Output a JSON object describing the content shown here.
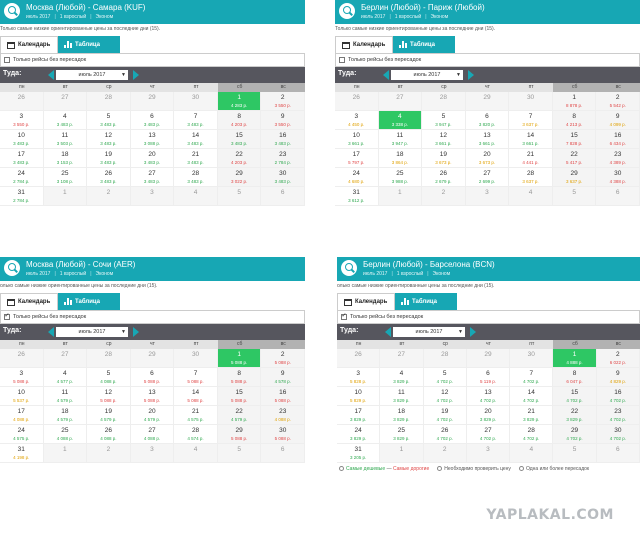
{
  "weekdays": [
    "пн",
    "вт",
    "ср",
    "чт",
    "пт",
    "сб",
    "вс"
  ],
  "common": {
    "tab_calendar": "Календарь",
    "tab_table": "Таблица",
    "direct_only": "Только рейсы без пересадок",
    "there_label": "Туда:",
    "month": "июль 2017",
    "month_arrow": "▼",
    "meta_month": "июль 2017",
    "meta_pax": "1 взрослый",
    "meta_class": "Эконом",
    "note": "Только самые низкие ориентированные цены за последние дни (15)."
  },
  "widgets": [
    {
      "route": "Москва (Любой) - Самара (KUF)",
      "note": "Только самые низкие ориентированные цены за последние дни (15).",
      "direct_checked": false,
      "days": [
        {
          "d": "26",
          "o": true
        },
        {
          "d": "27",
          "o": true
        },
        {
          "d": "28",
          "o": true
        },
        {
          "d": "29",
          "o": true
        },
        {
          "d": "30",
          "o": true
        },
        {
          "d": "1",
          "p": "4 283 р.",
          "sel": true
        },
        {
          "d": "2",
          "p": "3 550 р.",
          "c": "r"
        },
        {
          "d": "3",
          "p": "3 550 р.",
          "c": "r"
        },
        {
          "d": "4",
          "p": "3 483 р.",
          "c": "g"
        },
        {
          "d": "5",
          "p": "3 483 р.",
          "c": "g"
        },
        {
          "d": "6",
          "p": "3 483 р.",
          "c": "g"
        },
        {
          "d": "7",
          "p": "3 483 р.",
          "c": "g"
        },
        {
          "d": "8",
          "p": "4 203 р.",
          "c": "r"
        },
        {
          "d": "9",
          "p": "3 550 р.",
          "c": "r"
        },
        {
          "d": "10",
          "p": "3 483 р.",
          "c": "g"
        },
        {
          "d": "11",
          "p": "3 503 р.",
          "c": "g"
        },
        {
          "d": "12",
          "p": "3 483 р.",
          "c": "g"
        },
        {
          "d": "13",
          "p": "3 088 р.",
          "c": "g"
        },
        {
          "d": "14",
          "p": "3 483 р.",
          "c": "g"
        },
        {
          "d": "15",
          "p": "3 483 р.",
          "c": "g"
        },
        {
          "d": "16",
          "p": "3 483 р.",
          "c": "g"
        },
        {
          "d": "17",
          "p": "3 483 р.",
          "c": "g"
        },
        {
          "d": "18",
          "p": "3 153 р.",
          "c": "g"
        },
        {
          "d": "19",
          "p": "3 483 р.",
          "c": "g"
        },
        {
          "d": "20",
          "p": "3 483 р.",
          "c": "g"
        },
        {
          "d": "21",
          "p": "3 483 р.",
          "c": "g"
        },
        {
          "d": "22",
          "p": "4 203 р.",
          "c": "r"
        },
        {
          "d": "23",
          "p": "2 784 р.",
          "c": "g"
        },
        {
          "d": "24",
          "p": "2 784 р.",
          "c": "g"
        },
        {
          "d": "25",
          "p": "3 108 р.",
          "c": "g"
        },
        {
          "d": "26",
          "p": "3 483 р.",
          "c": "g"
        },
        {
          "d": "27",
          "p": "3 483 р.",
          "c": "g"
        },
        {
          "d": "28",
          "p": "3 483 р.",
          "c": "g"
        },
        {
          "d": "29",
          "p": "3 022 р.",
          "c": "r"
        },
        {
          "d": "30",
          "p": "3 483 р.",
          "c": "g"
        },
        {
          "d": "31",
          "p": "2 784 р.",
          "c": "g"
        },
        {
          "d": "1",
          "o": true
        },
        {
          "d": "2",
          "o": true
        },
        {
          "d": "3",
          "o": true
        },
        {
          "d": "4",
          "o": true
        },
        {
          "d": "5",
          "o": true
        },
        {
          "d": "6",
          "o": true
        }
      ]
    },
    {
      "route": "Берлин (Любой) - Париж (Любой)",
      "note": "Только самые низкие ориентированные цены за последние дни (15).",
      "direct_checked": false,
      "days": [
        {
          "d": "26",
          "o": true
        },
        {
          "d": "27",
          "o": true
        },
        {
          "d": "28",
          "o": true
        },
        {
          "d": "29",
          "o": true
        },
        {
          "d": "30",
          "o": true
        },
        {
          "d": "1",
          "p": "8 878 р.",
          "c": "r"
        },
        {
          "d": "2",
          "p": "5 542 р.",
          "c": "r"
        },
        {
          "d": "3",
          "p": "4 450 р.",
          "c": "o"
        },
        {
          "d": "4",
          "p": "3 338 р.",
          "sel": true
        },
        {
          "d": "5",
          "p": "3 947 р.",
          "c": "g"
        },
        {
          "d": "6",
          "p": "3 820 р.",
          "c": "g"
        },
        {
          "d": "7",
          "p": "3 637 р.",
          "c": "o"
        },
        {
          "d": "8",
          "p": "4 213 р.",
          "c": "r"
        },
        {
          "d": "9",
          "p": "4 099 р.",
          "c": "o"
        },
        {
          "d": "10",
          "p": "3 661 р.",
          "c": "g"
        },
        {
          "d": "11",
          "p": "3 947 р.",
          "c": "g"
        },
        {
          "d": "12",
          "p": "3 661 р.",
          "c": "g"
        },
        {
          "d": "13",
          "p": "3 661 р.",
          "c": "g"
        },
        {
          "d": "14",
          "p": "3 661 р.",
          "c": "g"
        },
        {
          "d": "15",
          "p": "7 828 р.",
          "c": "r"
        },
        {
          "d": "16",
          "p": "6 434 р.",
          "c": "r"
        },
        {
          "d": "17",
          "p": "5 797 р.",
          "c": "r"
        },
        {
          "d": "18",
          "p": "3 864 р.",
          "c": "o"
        },
        {
          "d": "19",
          "p": "3 673 р.",
          "c": "o"
        },
        {
          "d": "20",
          "p": "3 673 р.",
          "c": "o"
        },
        {
          "d": "21",
          "p": "4 441 р.",
          "c": "r"
        },
        {
          "d": "22",
          "p": "5 417 р.",
          "c": "r"
        },
        {
          "d": "23",
          "p": "4 389 р.",
          "c": "r"
        },
        {
          "d": "24",
          "p": "4 680 р.",
          "c": "o"
        },
        {
          "d": "25",
          "p": "3 988 р.",
          "c": "g"
        },
        {
          "d": "26",
          "p": "2 679 р.",
          "c": "g"
        },
        {
          "d": "27",
          "p": "2 699 р.",
          "c": "g"
        },
        {
          "d": "28",
          "p": "3 637 р.",
          "c": "o"
        },
        {
          "d": "29",
          "p": "3 637 р.",
          "c": "o"
        },
        {
          "d": "30",
          "p": "4 388 р.",
          "c": "r"
        },
        {
          "d": "31",
          "p": "3 612 р.",
          "c": "g"
        },
        {
          "d": "1",
          "o": true
        },
        {
          "d": "2",
          "o": true
        },
        {
          "d": "3",
          "o": true
        },
        {
          "d": "4",
          "o": true
        },
        {
          "d": "5",
          "o": true
        },
        {
          "d": "6",
          "o": true
        }
      ]
    },
    {
      "route": "Москва (Любой) - Сочи (AER)",
      "note": "олько самые низкие ориентированные цены за последние дни (15).",
      "direct_checked": true,
      "days": [
        {
          "d": "26",
          "o": true
        },
        {
          "d": "27",
          "o": true
        },
        {
          "d": "28",
          "o": true
        },
        {
          "d": "29",
          "o": true
        },
        {
          "d": "30",
          "o": true
        },
        {
          "d": "1",
          "p": "5 088 р.",
          "sel": true
        },
        {
          "d": "2",
          "p": "5 088 р.",
          "c": "r"
        },
        {
          "d": "3",
          "p": "5 088 р.",
          "c": "r"
        },
        {
          "d": "4",
          "p": "4 577 р.",
          "c": "g"
        },
        {
          "d": "5",
          "p": "4 088 р.",
          "c": "g"
        },
        {
          "d": "6",
          "p": "5 088 р.",
          "c": "r"
        },
        {
          "d": "7",
          "p": "5 088 р.",
          "c": "r"
        },
        {
          "d": "8",
          "p": "5 088 р.",
          "c": "r"
        },
        {
          "d": "9",
          "p": "4 578 р.",
          "c": "g"
        },
        {
          "d": "10",
          "p": "5 537 р.",
          "c": "o"
        },
        {
          "d": "11",
          "p": "4 579 р.",
          "c": "g"
        },
        {
          "d": "12",
          "p": "5 088 р.",
          "c": "r"
        },
        {
          "d": "13",
          "p": "5 088 р.",
          "c": "r"
        },
        {
          "d": "14",
          "p": "5 088 р.",
          "c": "r"
        },
        {
          "d": "15",
          "p": "5 088 р.",
          "c": "r"
        },
        {
          "d": "16",
          "p": "5 088 р.",
          "c": "r"
        },
        {
          "d": "17",
          "p": "4 088 р.",
          "c": "o"
        },
        {
          "d": "18",
          "p": "4 579 р.",
          "c": "g"
        },
        {
          "d": "19",
          "p": "4 579 р.",
          "c": "g"
        },
        {
          "d": "20",
          "p": "4 579 р.",
          "c": "g"
        },
        {
          "d": "21",
          "p": "4 575 р.",
          "c": "g"
        },
        {
          "d": "22",
          "p": "4 579 р.",
          "c": "g"
        },
        {
          "d": "23",
          "p": "4 088 р.",
          "c": "o"
        },
        {
          "d": "24",
          "p": "4 575 р.",
          "c": "g"
        },
        {
          "d": "25",
          "p": "4 088 р.",
          "c": "g"
        },
        {
          "d": "26",
          "p": "4 088 р.",
          "c": "g"
        },
        {
          "d": "27",
          "p": "4 088 р.",
          "c": "g"
        },
        {
          "d": "28",
          "p": "4 574 р.",
          "c": "g"
        },
        {
          "d": "29",
          "p": "5 088 р.",
          "c": "r"
        },
        {
          "d": "30",
          "p": "5 088 р.",
          "c": "r"
        },
        {
          "d": "31",
          "p": "4 198 р.",
          "c": "o"
        },
        {
          "d": "1",
          "o": true
        },
        {
          "d": "2",
          "o": true
        },
        {
          "d": "3",
          "o": true
        },
        {
          "d": "4",
          "o": true
        },
        {
          "d": "5",
          "o": true
        },
        {
          "d": "6",
          "o": true
        }
      ]
    },
    {
      "route": "Берлин (Любой) - Барселона (BCN)",
      "note": "олько самые низкие ориентированные цены за последние дни (15).",
      "direct_checked": true,
      "days": [
        {
          "d": "26",
          "o": true
        },
        {
          "d": "27",
          "o": true
        },
        {
          "d": "28",
          "o": true
        },
        {
          "d": "29",
          "o": true
        },
        {
          "d": "30",
          "o": true
        },
        {
          "d": "1",
          "p": "4 888 р.",
          "sel": true
        },
        {
          "d": "2",
          "p": "6 022 р.",
          "c": "r"
        },
        {
          "d": "3",
          "p": "5 828 р.",
          "c": "o"
        },
        {
          "d": "4",
          "p": "3 829 р.",
          "c": "g"
        },
        {
          "d": "5",
          "p": "4 702 р.",
          "c": "g"
        },
        {
          "d": "6",
          "p": "5 119 р.",
          "c": "r"
        },
        {
          "d": "7",
          "p": "4 702 р.",
          "c": "g"
        },
        {
          "d": "8",
          "p": "6 047 р.",
          "c": "r"
        },
        {
          "d": "9",
          "p": "4 829 р.",
          "c": "o"
        },
        {
          "d": "10",
          "p": "5 829 р.",
          "c": "o"
        },
        {
          "d": "11",
          "p": "3 829 р.",
          "c": "g"
        },
        {
          "d": "12",
          "p": "4 702 р.",
          "c": "g"
        },
        {
          "d": "13",
          "p": "4 702 р.",
          "c": "g"
        },
        {
          "d": "14",
          "p": "4 702 р.",
          "c": "g"
        },
        {
          "d": "15",
          "p": "4 702 р.",
          "c": "g"
        },
        {
          "d": "16",
          "p": "4 702 р.",
          "c": "g"
        },
        {
          "d": "17",
          "p": "3 829 р.",
          "c": "g"
        },
        {
          "d": "18",
          "p": "3 829 р.",
          "c": "g"
        },
        {
          "d": "19",
          "p": "4 702 р.",
          "c": "g"
        },
        {
          "d": "20",
          "p": "3 829 р.",
          "c": "g"
        },
        {
          "d": "21",
          "p": "3 829 р.",
          "c": "g"
        },
        {
          "d": "22",
          "p": "3 829 р.",
          "c": "g"
        },
        {
          "d": "23",
          "p": "4 702 р.",
          "c": "g"
        },
        {
          "d": "24",
          "p": "3 829 р.",
          "c": "g"
        },
        {
          "d": "25",
          "p": "3 829 р.",
          "c": "g"
        },
        {
          "d": "26",
          "p": "4 702 р.",
          "c": "g"
        },
        {
          "d": "27",
          "p": "4 702 р.",
          "c": "g"
        },
        {
          "d": "28",
          "p": "4 702 р.",
          "c": "g"
        },
        {
          "d": "29",
          "p": "4 702 р.",
          "c": "g"
        },
        {
          "d": "30",
          "p": "4 702 р.",
          "c": "g"
        },
        {
          "d": "31",
          "p": "3 205 р.",
          "c": "g"
        },
        {
          "d": "1",
          "o": true
        },
        {
          "d": "2",
          "o": true
        },
        {
          "d": "3",
          "o": true
        },
        {
          "d": "4",
          "o": true
        },
        {
          "d": "5",
          "o": true
        },
        {
          "d": "6",
          "o": true
        }
      ],
      "legend": {
        "cheap": "Самые дешевые",
        "dash": "—",
        "expensive": "Самые дорогие",
        "check": "Необходимо проверить цену",
        "transfer": "Одна или более пересадок"
      }
    }
  ],
  "watermark": "YAPLAKAL.COM",
  "colors": {
    "accent": "#17a7b4",
    "selected": "#2ec764",
    "cheap": "#2fa84f",
    "mid": "#e0a000",
    "expensive": "#e04646"
  }
}
